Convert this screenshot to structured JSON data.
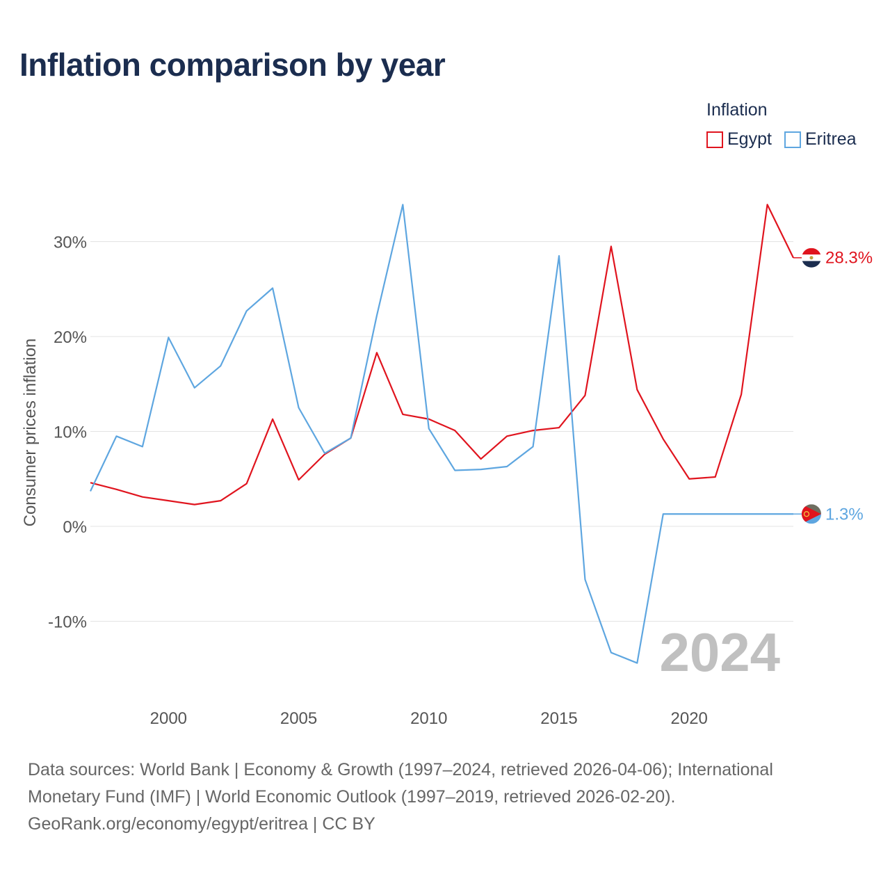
{
  "title": "Inflation comparison by year",
  "legend": {
    "title": "Inflation",
    "items": [
      {
        "name": "Egypt",
        "color": "#e0141e"
      },
      {
        "name": "Eritrea",
        "color": "#5ea6e0"
      }
    ]
  },
  "footer": {
    "line1": "Data sources: World Bank | Economy & Growth (1997–2024, retrieved 2026-04-06); International",
    "line2": "Monetary Fund (IMF) | World Economic Outlook (1997–2019, retrieved 2026-02-20).",
    "line3": "GeoRank.org/economy/egypt/eritrea | CC BY"
  },
  "chart_data": {
    "type": "line",
    "title": "Inflation comparison by year",
    "xlabel": "",
    "ylabel": "Consumer prices inflation",
    "xlim": [
      1997,
      2024
    ],
    "ylim": [
      -17,
      36
    ],
    "x_ticks": [
      2000,
      2005,
      2010,
      2015,
      2020
    ],
    "y_ticks": [
      -10,
      0,
      10,
      20,
      30
    ],
    "y_tick_labels": [
      "-10%",
      "0%",
      "10%",
      "20%",
      "30%"
    ],
    "grid": true,
    "legend_position": "top-right",
    "year_label": "2024",
    "x": [
      1997,
      1998,
      1999,
      2000,
      2001,
      2002,
      2003,
      2004,
      2005,
      2006,
      2007,
      2008,
      2009,
      2010,
      2011,
      2012,
      2013,
      2014,
      2015,
      2016,
      2017,
      2018,
      2019,
      2020,
      2021,
      2022,
      2023,
      2024
    ],
    "series": [
      {
        "name": "Egypt",
        "color": "#e0141e",
        "end_label": "28.3%",
        "values": [
          4.6,
          3.9,
          3.1,
          2.7,
          2.3,
          2.7,
          4.5,
          11.3,
          4.9,
          7.6,
          9.3,
          18.3,
          11.8,
          11.3,
          10.1,
          7.1,
          9.5,
          10.1,
          10.4,
          13.8,
          29.5,
          14.4,
          9.2,
          5.0,
          5.2,
          13.9,
          33.9,
          28.3
        ]
      },
      {
        "name": "Eritrea",
        "color": "#5ea6e0",
        "end_label": "1.3%",
        "values": [
          3.7,
          9.5,
          8.4,
          19.9,
          14.6,
          16.9,
          22.7,
          25.1,
          12.5,
          7.7,
          9.3,
          22.2,
          33.9,
          10.3,
          5.9,
          6.0,
          6.3,
          8.4,
          28.5,
          -5.6,
          -13.3,
          -14.4,
          1.3,
          1.3,
          1.3,
          1.3,
          1.3,
          1.3
        ]
      }
    ]
  }
}
